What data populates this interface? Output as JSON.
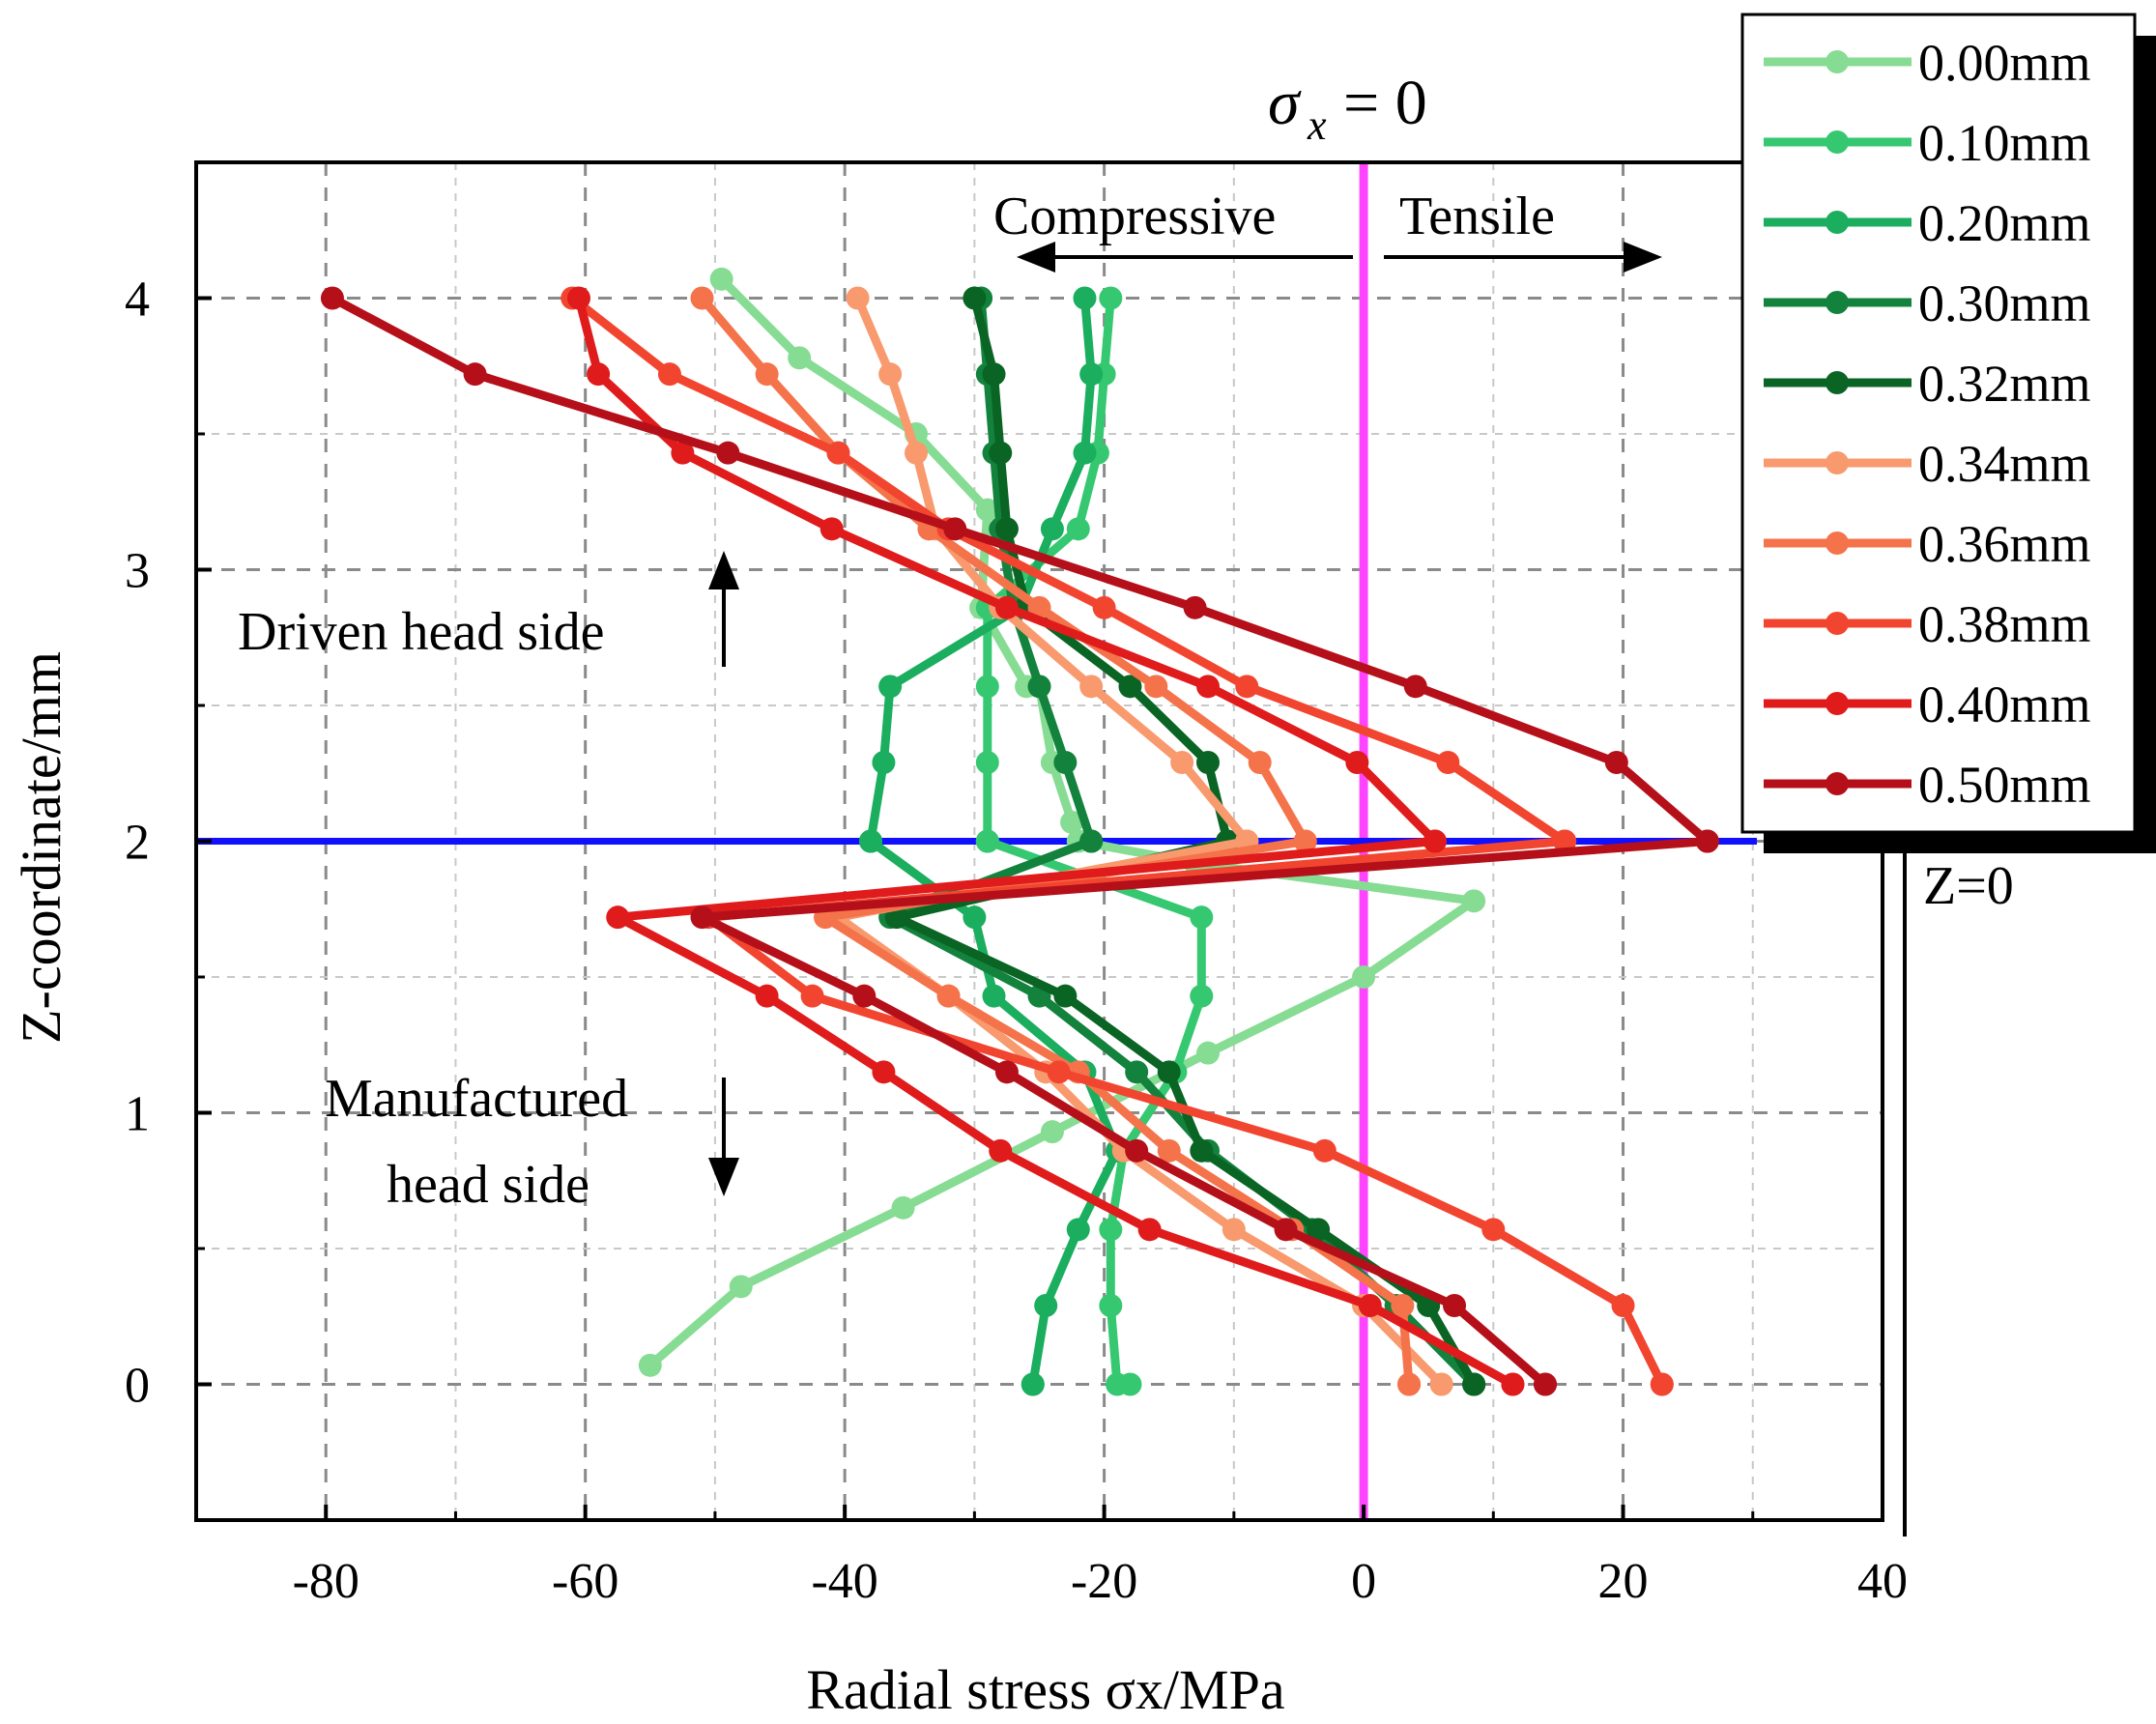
{
  "chart_data": {
    "type": "line",
    "title": "",
    "xlabel": "Radial stress σx/MPa",
    "ylabel": "Z-coordinate/mm",
    "xlim": [
      -90,
      40
    ],
    "ylim": [
      -0.5,
      4.5
    ],
    "xticks": [
      "-80",
      "-60",
      "-40",
      "-20",
      "0",
      "20",
      "40"
    ],
    "yticks": [
      "0",
      "1",
      "2",
      "3",
      "4"
    ],
    "grid": true,
    "legend_position": "top-right outside",
    "reference_lines": [
      {
        "orientation": "vertical",
        "value": 0,
        "color": "#ff44ff",
        "label": "σx = 0"
      },
      {
        "orientation": "horizontal",
        "value": 2,
        "color": "#1010ff",
        "label": "Z=0"
      }
    ],
    "annotations": {
      "sigma_label": "= 0",
      "sigma_symbol": "σ",
      "sigma_sub": "x",
      "compressive": "Compressive",
      "tensile": "Tensile",
      "driven": "Driven head side",
      "manufactured_line1": "Manufactured",
      "manufactured_line2": "head side",
      "z0": "Z=0"
    },
    "series": [
      {
        "name": "0.00mm",
        "color": "#86dc93",
        "x": [
          -49.5,
          -43.5,
          -34.5,
          -29,
          -29.5,
          -26,
          -25,
          -24,
          -22.5,
          -22,
          -13,
          8.5,
          0,
          -12,
          -24,
          -35.5,
          -48,
          -55
        ],
        "y": [
          4.07,
          3.78,
          3.5,
          3.22,
          2.86,
          2.57,
          2.57,
          2.29,
          2.07,
          2.0,
          1.92,
          1.78,
          1.5,
          1.22,
          0.93,
          0.65,
          0.36,
          0.07
        ]
      },
      {
        "name": "0.10mm",
        "color": "#35c871",
        "x": [
          -19.5,
          -20,
          -20.5,
          -22,
          -29,
          -29,
          -29,
          -29,
          -29,
          -29,
          -12.5,
          -12.5,
          -14.5,
          -18.5,
          -19.5,
          -19.5,
          -19,
          -18
        ],
        "y": [
          4.0,
          3.72,
          3.43,
          3.15,
          2.86,
          2.57,
          2.29,
          2.0,
          2.0,
          2.0,
          1.72,
          1.43,
          1.15,
          0.86,
          0.57,
          0.29,
          0.0,
          0.0
        ]
      },
      {
        "name": "0.20mm",
        "color": "#1aae5e",
        "x": [
          -21.5,
          -21,
          -21.5,
          -24,
          -26.5,
          -36.5,
          -37,
          -38,
          -38,
          -38,
          -30,
          -28.5,
          -21.5,
          -19,
          -22,
          -24.5,
          -25.5,
          -25.5
        ],
        "y": [
          4.0,
          3.72,
          3.43,
          3.15,
          2.86,
          2.57,
          2.29,
          2.0,
          2.0,
          2.0,
          1.72,
          1.43,
          1.15,
          0.86,
          0.57,
          0.29,
          0.0,
          0.0
        ]
      },
      {
        "name": "0.30mm",
        "color": "#12823d",
        "x": [
          -29.5,
          -29,
          -28.5,
          -28,
          -27,
          -25,
          -23,
          -21,
          -21,
          -21,
          -36.5,
          -25,
          -17.5,
          -12,
          -4,
          2.5,
          8.5,
          8.5
        ],
        "y": [
          4.0,
          3.72,
          3.43,
          3.15,
          2.86,
          2.57,
          2.29,
          2.0,
          2.0,
          2.0,
          1.72,
          1.43,
          1.15,
          0.86,
          0.57,
          0.29,
          0.0,
          0.0
        ]
      },
      {
        "name": "0.32mm",
        "color": "#0a6424",
        "x": [
          -30,
          -28.5,
          -28,
          -27.5,
          -26,
          -18,
          -12,
          -10.5,
          -10.5,
          -10.5,
          -36,
          -23,
          -15,
          -12.5,
          -3.5,
          5,
          8.5,
          8.5
        ],
        "y": [
          4.0,
          3.72,
          3.43,
          3.15,
          2.86,
          2.57,
          2.29,
          2.0,
          2.0,
          2.0,
          1.72,
          1.43,
          1.15,
          0.86,
          0.57,
          0.29,
          0.0,
          0.0
        ]
      },
      {
        "name": "0.34mm",
        "color": "#f89a6e",
        "x": [
          -39,
          -36.5,
          -34.5,
          -33,
          -28,
          -21,
          -14,
          -9,
          -9,
          -9,
          -40.5,
          -32,
          -24.5,
          -18.5,
          -10,
          0,
          6,
          6
        ],
        "y": [
          4.0,
          3.72,
          3.43,
          3.15,
          2.86,
          2.57,
          2.29,
          2.0,
          2.0,
          2.0,
          1.72,
          1.43,
          1.15,
          0.86,
          0.57,
          0.29,
          0.0,
          0.0
        ]
      },
      {
        "name": "0.36mm",
        "color": "#f4734a",
        "x": [
          -51,
          -46,
          -40.5,
          -33.5,
          -25,
          -16,
          -8,
          -4.5,
          -4.5,
          -4.5,
          -41.5,
          -32,
          -22,
          -15,
          -5.5,
          3,
          3.5,
          3.5
        ],
        "y": [
          4.0,
          3.72,
          3.43,
          3.15,
          2.86,
          2.57,
          2.29,
          2.0,
          2.0,
          2.0,
          1.72,
          1.43,
          1.15,
          0.86,
          0.57,
          0.29,
          0.0,
          0.0
        ]
      },
      {
        "name": "0.38mm",
        "color": "#f24530",
        "x": [
          -61,
          -53.5,
          -40.5,
          -32,
          -20,
          -9,
          6.5,
          15.5,
          15.5,
          15.5,
          -50.5,
          -42.5,
          -23.5,
          -3,
          10,
          20,
          23,
          23
        ],
        "y": [
          4.0,
          3.72,
          3.43,
          3.15,
          2.86,
          2.57,
          2.29,
          2.0,
          2.0,
          2.0,
          1.72,
          1.43,
          1.15,
          0.86,
          0.57,
          0.29,
          0.0,
          0.0
        ]
      },
      {
        "name": "0.40mm",
        "color": "#e01b1b",
        "x": [
          -60.5,
          -59,
          -52.5,
          -41,
          -27.5,
          -12,
          -0.5,
          5.5,
          5.5,
          5.5,
          -57.5,
          -46,
          -37,
          -28,
          -16.5,
          0.5,
          11.5,
          11.5
        ],
        "y": [
          4.0,
          3.72,
          3.43,
          3.15,
          2.86,
          2.57,
          2.29,
          2.0,
          2.0,
          2.0,
          1.72,
          1.43,
          1.15,
          0.86,
          0.57,
          0.29,
          0.0,
          0.0
        ]
      },
      {
        "name": "0.50mm",
        "color": "#b5101a",
        "x": [
          -79.5,
          -68.5,
          -49,
          -31.5,
          -13,
          4,
          19.5,
          26.5,
          26.5,
          26.5,
          -51,
          -38.5,
          -27.5,
          -17.5,
          -6,
          7,
          14,
          14
        ],
        "y": [
          4.0,
          3.72,
          3.43,
          3.15,
          2.86,
          2.57,
          2.29,
          2.0,
          2.0,
          2.0,
          1.72,
          1.43,
          1.15,
          0.86,
          0.57,
          0.29,
          0.0,
          0.0
        ]
      }
    ]
  }
}
